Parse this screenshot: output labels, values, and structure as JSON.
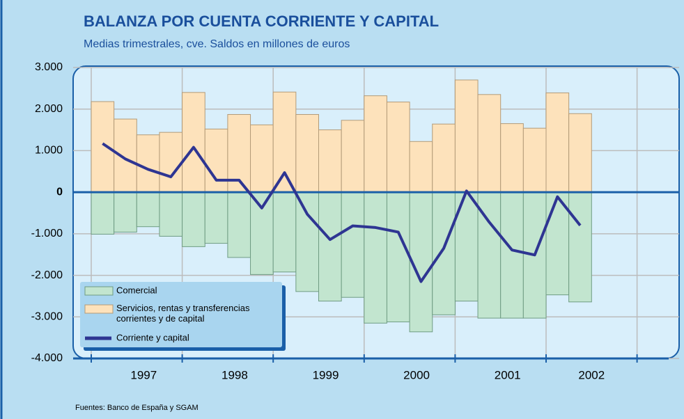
{
  "chart_data": {
    "type": "bar_line",
    "title": "BALANZA POR CUENTA CORRIENTE Y CAPITAL",
    "subtitle": "Medias trimestrales, cve. Saldos en millones de euros",
    "source": "Fuentes: Banco de España y SGAM",
    "categories": [
      null,
      null,
      null,
      null,
      null,
      null,
      null,
      null,
      null,
      null,
      null,
      null,
      null,
      null,
      null,
      null,
      null,
      null,
      null,
      null,
      null,
      null
    ],
    "year_labels": [
      "1997",
      "1998",
      "1999",
      "2000",
      "2001",
      "2002"
    ],
    "series": [
      {
        "name": "Comercial",
        "color": "#c2e5cf",
        "values": [
          -1010,
          -960,
          -830,
          -1060,
          -1310,
          -1230,
          -1570,
          -1980,
          -1920,
          -2390,
          -2620,
          -2530,
          -3150,
          -3120,
          -3360,
          -2950,
          -2620,
          -3030,
          -3030,
          -3030,
          -2470,
          -2640
        ]
      },
      {
        "name": "Servicios, rentas y transferencias corrientes y de capital",
        "color": "#fde2bb",
        "values": [
          2180,
          1760,
          1380,
          1440,
          2400,
          1520,
          1870,
          1620,
          2410,
          1870,
          1500,
          1730,
          2320,
          2170,
          1220,
          1640,
          2700,
          2350,
          1650,
          1540,
          2390,
          1890
        ]
      },
      {
        "name": "Corriente y capital",
        "color": "#2e3592",
        "type": "line",
        "values": [
          1170,
          800,
          550,
          370,
          1080,
          290,
          290,
          -380,
          470,
          -530,
          -1140,
          -810,
          -850,
          -960,
          -2150,
          -1350,
          30,
          -720,
          -1390,
          -1510,
          -110,
          -800
        ]
      }
    ],
    "ylim": [
      -4000,
      3000
    ],
    "yticks": [
      {
        "value": 3000,
        "label": "3.000"
      },
      {
        "value": 2000,
        "label": "2.000"
      },
      {
        "value": 1000,
        "label": "1.000"
      },
      0,
      {
        "value": -1000,
        "label": "-1.000"
      },
      {
        "value": -2000,
        "label": "-2.000"
      },
      {
        "value": -3000,
        "label": "-3.000"
      },
      {
        "value": -4000,
        "label": "-4.000"
      }
    ],
    "grid": true
  }
}
